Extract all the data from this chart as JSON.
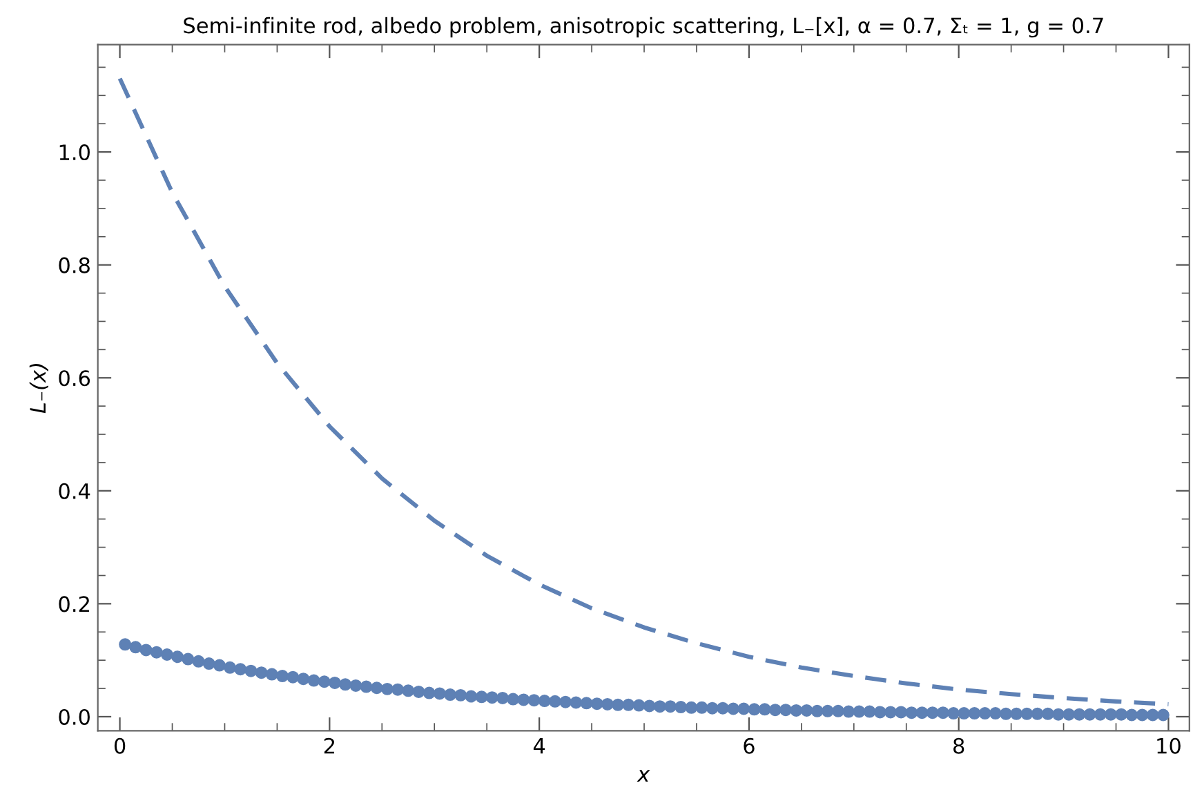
{
  "chart_data": {
    "type": "line",
    "title": "Semi‑infinite rod, albedo problem, anisotropic scattering, L₋[x], α = 0.7, Σₜ = 1, g = 0.7",
    "xlabel": "x",
    "ylabel": "L₋(x)",
    "xlim": [
      -0.21,
      10.2
    ],
    "ylim": [
      -0.025,
      1.19
    ],
    "xticks": [
      0,
      2,
      4,
      6,
      8,
      10,
      {
        "value": 0.5,
        "label": null
      },
      {
        "value": 1,
        "label": null
      },
      {
        "value": 1.5,
        "label": null
      },
      {
        "value": 2.5,
        "label": null
      },
      {
        "value": 3,
        "label": null
      },
      {
        "value": 3.5,
        "label": null
      },
      {
        "value": 4.5,
        "label": null
      },
      {
        "value": 5,
        "label": null
      },
      {
        "value": 5.5,
        "label": null
      },
      {
        "value": 6.5,
        "label": null
      },
      {
        "value": 7,
        "label": null
      },
      {
        "value": 7.5,
        "label": null
      },
      {
        "value": 8.5,
        "label": null
      },
      {
        "value": 9,
        "label": null
      },
      {
        "value": 9.5,
        "label": null
      }
    ],
    "yticks": [
      {
        "value": 0,
        "label": "0.0"
      },
      0.2,
      0.4,
      0.6,
      0.8,
      {
        "value": 1,
        "label": "1.0"
      },
      {
        "value": 0.05,
        "label": null
      },
      {
        "value": 0.1,
        "label": null
      },
      {
        "value": 0.15,
        "label": null
      },
      {
        "value": 0.25,
        "label": null
      },
      {
        "value": 0.3,
        "label": null
      },
      {
        "value": 0.35,
        "label": null
      },
      {
        "value": 0.45,
        "label": null
      },
      {
        "value": 0.5,
        "label": null
      },
      {
        "value": 0.55,
        "label": null
      },
      {
        "value": 0.65,
        "label": null
      },
      {
        "value": 0.7,
        "label": null
      },
      {
        "value": 0.75,
        "label": null
      },
      {
        "value": 0.85,
        "label": null
      },
      {
        "value": 0.9,
        "label": null
      },
      {
        "value": 0.95,
        "label": null
      },
      {
        "value": 1.05,
        "label": null
      },
      {
        "value": 1.1,
        "label": null
      },
      {
        "value": 1.15,
        "label": null
      }
    ],
    "grid": false,
    "legend": false,
    "series": [
      {
        "line_style": "dashed",
        "marker": "none",
        "color": "#5e81b5",
        "x": [
          0,
          0.5,
          1,
          1.5,
          2,
          2.5,
          3,
          3.5,
          4,
          4.5,
          5,
          5.5,
          6,
          6.5,
          7,
          7.5,
          8,
          8.5,
          9,
          9.5,
          10
        ],
        "values": [
          1.13,
          0.928,
          0.762,
          0.626,
          0.514,
          0.422,
          0.347,
          0.285,
          0.234,
          0.192,
          0.158,
          0.13,
          0.106,
          0.087,
          0.072,
          0.059,
          0.048,
          0.04,
          0.033,
          0.027,
          0.022
        ]
      },
      {
        "type": "scatter",
        "marker": "circle",
        "color": "#5e81b5",
        "x": [
          0.05,
          0.15,
          0.25,
          0.35,
          0.45,
          0.55,
          0.65,
          0.75,
          0.85,
          0.95,
          1.05,
          1.15,
          1.25,
          1.35,
          1.45,
          1.55,
          1.65,
          1.75,
          1.85,
          1.95,
          2.05,
          2.15,
          2.25,
          2.35,
          2.45,
          2.55,
          2.65,
          2.75,
          2.85,
          2.95,
          3.05,
          3.15,
          3.25,
          3.35,
          3.45,
          3.55,
          3.65,
          3.75,
          3.85,
          3.95,
          4.05,
          4.15,
          4.25,
          4.35,
          4.45,
          4.55,
          4.65,
          4.75,
          4.85,
          4.95,
          5.05,
          5.15,
          5.25,
          5.35,
          5.45,
          5.55,
          5.65,
          5.75,
          5.85,
          5.95,
          6.05,
          6.15,
          6.25,
          6.35,
          6.45,
          6.55,
          6.65,
          6.75,
          6.85,
          6.95,
          7.05,
          7.15,
          7.25,
          7.35,
          7.45,
          7.55,
          7.65,
          7.75,
          7.85,
          7.95,
          8.05,
          8.15,
          8.25,
          8.35,
          8.45,
          8.55,
          8.65,
          8.75,
          8.85,
          8.95,
          9.05,
          9.15,
          9.25,
          9.35,
          9.45,
          9.55,
          9.65,
          9.75,
          9.85,
          9.95
        ],
        "values": [
          0.128,
          0.123,
          0.118,
          0.114,
          0.11,
          0.106,
          0.102,
          0.098,
          0.094,
          0.091,
          0.087,
          0.084,
          0.081,
          0.078,
          0.075,
          0.072,
          0.07,
          0.067,
          0.064,
          0.062,
          0.06,
          0.057,
          0.055,
          0.053,
          0.051,
          0.049,
          0.048,
          0.046,
          0.044,
          0.042,
          0.041,
          0.039,
          0.038,
          0.036,
          0.035,
          0.034,
          0.033,
          0.031,
          0.03,
          0.029,
          0.028,
          0.027,
          0.026,
          0.025,
          0.024,
          0.023,
          0.022,
          0.021,
          0.021,
          0.02,
          0.019,
          0.018,
          0.018,
          0.017,
          0.016,
          0.016,
          0.015,
          0.015,
          0.014,
          0.014,
          0.013,
          0.013,
          0.012,
          0.012,
          0.011,
          0.011,
          0.01,
          0.01,
          0.01,
          0.009,
          0.009,
          0.009,
          0.008,
          0.008,
          0.008,
          0.007,
          0.007,
          0.007,
          0.007,
          0.006,
          0.006,
          0.006,
          0.006,
          0.006,
          0.005,
          0.005,
          0.005,
          0.005,
          0.005,
          0.004,
          0.004,
          0.004,
          0.004,
          0.004,
          0.004,
          0.004,
          0.003,
          0.003,
          0.003,
          0.003
        ]
      }
    ]
  }
}
